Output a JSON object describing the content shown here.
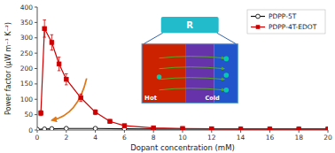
{
  "chart_data": {
    "type": "line",
    "xlabel": "Dopant concentration (mM)",
    "ylabel": "Power factor (μW m⁻¹ K⁻²)",
    "series": [
      {
        "name": "PDPP-5T",
        "color": "#111111",
        "marker": "open-circle",
        "x": [
          0,
          0.5,
          1,
          2,
          4,
          6,
          8,
          10,
          12,
          14,
          16,
          18,
          20
        ],
        "values": [
          2,
          3,
          4,
          5,
          5,
          4,
          3,
          3,
          3,
          3,
          3,
          3,
          3
        ],
        "errors": [
          1,
          1,
          1,
          1,
          1,
          1,
          1,
          1,
          1,
          1,
          1,
          1,
          1
        ]
      },
      {
        "name": "PDPP-4T-EDOT",
        "color": "#cc0000",
        "marker": "square",
        "x": [
          0.25,
          0.5,
          1,
          1.5,
          2,
          3,
          4,
          5,
          6,
          8,
          10,
          12,
          14,
          16,
          18,
          20
        ],
        "values": [
          55,
          330,
          285,
          215,
          165,
          105,
          58,
          28,
          14,
          7,
          5,
          4,
          3,
          3,
          3,
          3
        ],
        "errors": [
          8,
          28,
          25,
          22,
          18,
          12,
          8,
          6,
          4,
          2,
          2,
          2,
          2,
          2,
          2,
          2
        ]
      }
    ],
    "xlim": [
      0,
      20
    ],
    "ylim": [
      0,
      400
    ],
    "xticks": [
      0,
      2,
      4,
      6,
      8,
      10,
      12,
      14,
      16,
      18,
      20
    ],
    "yticks": [
      0,
      50,
      100,
      150,
      200,
      250,
      300,
      350,
      400
    ],
    "grid": false,
    "legend": "upper right",
    "annotations": [
      "Hot",
      "Cold",
      "R"
    ]
  }
}
